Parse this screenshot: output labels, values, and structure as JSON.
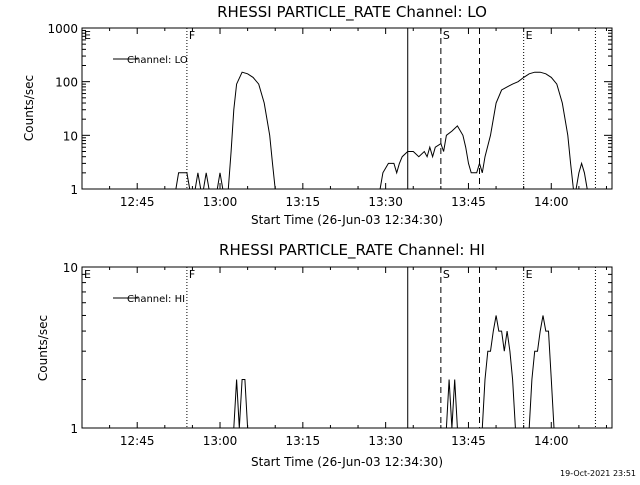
{
  "timestamp": "19-Oct-2021 23:51",
  "chart_data": [
    {
      "type": "line",
      "title": "RHESSI PARTICLE_RATE Channel: LO",
      "xlabel": "Start Time (26-Jun-03 12:34:30)",
      "ylabel": "Counts/sec",
      "yscale": "log",
      "xlim": [
        "12:35",
        "14:11"
      ],
      "ylim": [
        1,
        1000
      ],
      "x_ticks": [
        "12:45",
        "13:00",
        "13:15",
        "13:30",
        "13:45",
        "14:00"
      ],
      "y_ticks": [
        "1",
        "10",
        "100",
        "1000"
      ],
      "legend": {
        "label": "Channel: LO",
        "placement": "top-left"
      },
      "markers": [
        {
          "label": "E",
          "time": "12:35",
          "style": "dotted"
        },
        {
          "label": "F",
          "time": "12:54",
          "style": "dotted"
        },
        {
          "label": "",
          "time": "13:34",
          "style": "solid"
        },
        {
          "label": "S",
          "time": "13:40",
          "style": "dashed"
        },
        {
          "label": "",
          "time": "13:47",
          "style": "dashed"
        },
        {
          "label": "E",
          "time": "13:55",
          "style": "dotted"
        },
        {
          "label": "",
          "time": "14:08",
          "style": "dotted"
        }
      ],
      "segments": [
        [
          [
            "12:52",
            1
          ],
          [
            "12:52.5",
            2
          ],
          [
            "12:54",
            2
          ],
          [
            "12:54.5",
            1
          ]
        ],
        [
          [
            "12:55.5",
            1
          ],
          [
            "12:56",
            2
          ],
          [
            "12:56.5",
            1
          ],
          [
            "12:57",
            1
          ],
          [
            "12:57.5",
            2
          ],
          [
            "12:58",
            1
          ],
          [
            "12:59.5",
            1
          ],
          [
            "13:00",
            2
          ],
          [
            "13:00.5",
            1
          ]
        ],
        [
          [
            "13:01.5",
            1
          ],
          [
            "13:02",
            5
          ],
          [
            "13:02.5",
            30
          ],
          [
            "13:03",
            90
          ],
          [
            "13:04",
            150
          ],
          [
            "13:05",
            140
          ],
          [
            "13:06",
            120
          ],
          [
            "13:07",
            90
          ],
          [
            "13:08",
            40
          ],
          [
            "13:09",
            10
          ],
          [
            "13:09.5",
            3
          ],
          [
            "13:10",
            1
          ]
        ],
        [
          [
            "13:29",
            1
          ],
          [
            "13:29.5",
            2
          ],
          [
            "13:30.5",
            3
          ],
          [
            "13:31.5",
            3
          ],
          [
            "13:32",
            2
          ],
          [
            "13:32.5",
            3
          ],
          [
            "13:33",
            4
          ],
          [
            "13:34",
            5
          ],
          [
            "13:35",
            5
          ],
          [
            "13:36",
            4
          ],
          [
            "13:37",
            5
          ],
          [
            "13:37.5",
            4
          ],
          [
            "13:38",
            6
          ],
          [
            "13:38.5",
            4
          ],
          [
            "13:39",
            6
          ],
          [
            "13:40",
            7
          ],
          [
            "13:40.5",
            5
          ],
          [
            "13:41",
            10
          ],
          [
            "13:42",
            12
          ],
          [
            "13:43",
            15
          ],
          [
            "13:44",
            10
          ],
          [
            "13:44.5",
            6
          ],
          [
            "13:45",
            3
          ],
          [
            "13:45.5",
            2
          ],
          [
            "13:46.5",
            2
          ],
          [
            "13:47",
            3
          ],
          [
            "13:47.5",
            2
          ],
          [
            "13:48",
            4
          ],
          [
            "13:49",
            10
          ],
          [
            "13:50",
            40
          ],
          [
            "13:51",
            70
          ],
          [
            "13:52",
            80
          ],
          [
            "13:53",
            90
          ],
          [
            "13:54",
            100
          ],
          [
            "13:55",
            120
          ],
          [
            "13:56",
            140
          ],
          [
            "13:57",
            150
          ],
          [
            "13:58",
            150
          ],
          [
            "13:59",
            140
          ],
          [
            "14:00",
            120
          ],
          [
            "14:01",
            90
          ],
          [
            "14:02",
            40
          ],
          [
            "14:03",
            10
          ],
          [
            "14:03.5",
            3
          ],
          [
            "14:04",
            1
          ]
        ],
        [
          [
            "14:04.5",
            1
          ],
          [
            "14:05",
            2
          ],
          [
            "14:05.5",
            3
          ],
          [
            "14:06",
            2
          ],
          [
            "14:06.5",
            1
          ]
        ]
      ]
    },
    {
      "type": "line",
      "title": "RHESSI PARTICLE_RATE Channel: HI",
      "xlabel": "Start Time (26-Jun-03 12:34:30)",
      "ylabel": "Counts/sec",
      "yscale": "log",
      "xlim": [
        "12:35",
        "14:11"
      ],
      "ylim": [
        1,
        10
      ],
      "x_ticks": [
        "12:45",
        "13:00",
        "13:15",
        "13:30",
        "13:45",
        "14:00"
      ],
      "y_ticks": [
        "1",
        "10"
      ],
      "legend": {
        "label": "Channel: HI",
        "placement": "top-left"
      },
      "markers": [
        {
          "label": "E",
          "time": "12:35",
          "style": "dotted"
        },
        {
          "label": "F",
          "time": "12:54",
          "style": "dotted"
        },
        {
          "label": "",
          "time": "13:34",
          "style": "solid"
        },
        {
          "label": "S",
          "time": "13:40",
          "style": "dashed"
        },
        {
          "label": "",
          "time": "13:47",
          "style": "dashed"
        },
        {
          "label": "E",
          "time": "13:55",
          "style": "dotted"
        },
        {
          "label": "",
          "time": "14:08",
          "style": "dotted"
        }
      ],
      "segments": [
        [
          [
            "13:02.5",
            1
          ],
          [
            "13:03",
            2
          ],
          [
            "13:03.5",
            1
          ],
          [
            "13:04",
            2
          ],
          [
            "13:04.5",
            2
          ],
          [
            "13:05",
            1
          ]
        ],
        [
          [
            "13:41",
            1
          ],
          [
            "13:41.5",
            2
          ],
          [
            "13:42",
            1
          ],
          [
            "13:42.5",
            2
          ],
          [
            "13:43",
            1
          ]
        ],
        [
          [
            "13:47.5",
            1
          ],
          [
            "13:48",
            2
          ],
          [
            "13:48.5",
            3
          ],
          [
            "13:49",
            3
          ],
          [
            "13:49.5",
            4
          ],
          [
            "13:50",
            5
          ],
          [
            "13:50.5",
            4
          ],
          [
            "13:51",
            4
          ],
          [
            "13:51.5",
            3
          ],
          [
            "13:52",
            4
          ],
          [
            "13:52.5",
            3
          ],
          [
            "13:53",
            2
          ],
          [
            "13:53.5",
            1
          ]
        ],
        [
          [
            "13:56",
            1
          ],
          [
            "13:56.5",
            2
          ],
          [
            "13:57",
            3
          ],
          [
            "13:57.5",
            3
          ],
          [
            "13:58",
            4
          ],
          [
            "13:58.5",
            5
          ],
          [
            "13:59",
            4
          ],
          [
            "13:59.5",
            4
          ],
          [
            "14:00",
            2
          ],
          [
            "14:00.5",
            1
          ]
        ]
      ]
    }
  ]
}
